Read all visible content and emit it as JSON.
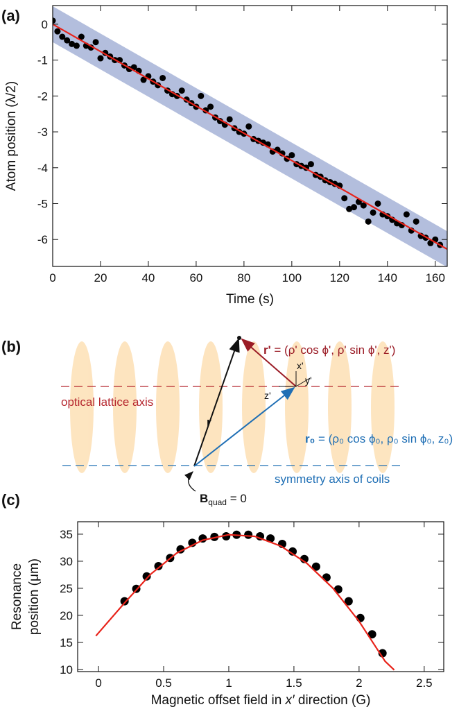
{
  "chart_data": [
    {
      "type": "scatter",
      "panel_label": "(a)",
      "xlabel": "Time (s)",
      "ylabel": "Atom position (λ/2)",
      "x": [
        0,
        2,
        4,
        6,
        8,
        10,
        12,
        14,
        16,
        18,
        20,
        22,
        24,
        26,
        28,
        30,
        32,
        34,
        36,
        38,
        40,
        42,
        44,
        46,
        48,
        50,
        52,
        54,
        56,
        58,
        60,
        62,
        64,
        66,
        68,
        70,
        72,
        74,
        76,
        78,
        80,
        82,
        84,
        86,
        88,
        90,
        92,
        94,
        96,
        98,
        100,
        102,
        104,
        106,
        108,
        110,
        112,
        114,
        116,
        118,
        120,
        122,
        124,
        126,
        128,
        130,
        132,
        134,
        136,
        138,
        140,
        142,
        144,
        146,
        148,
        150,
        152,
        154,
        156,
        158,
        160,
        162
      ],
      "values": [
        0.1,
        -0.2,
        -0.35,
        -0.45,
        -0.55,
        -0.6,
        -0.35,
        -0.6,
        -0.65,
        -0.5,
        -0.95,
        -0.8,
        -0.9,
        -1.0,
        -1.0,
        -1.15,
        -1.25,
        -1.2,
        -1.3,
        -1.55,
        -1.45,
        -1.6,
        -1.7,
        -1.5,
        -1.85,
        -1.95,
        -2.0,
        -1.85,
        -2.1,
        -2.2,
        -2.3,
        -2.0,
        -2.4,
        -2.3,
        -2.6,
        -2.7,
        -2.8,
        -2.65,
        -2.9,
        -3.0,
        -3.05,
        -2.85,
        -3.2,
        -3.25,
        -3.3,
        -3.35,
        -3.55,
        -3.5,
        -3.6,
        -3.75,
        -3.65,
        -3.9,
        -3.95,
        -4.0,
        -3.9,
        -4.2,
        -4.25,
        -4.35,
        -4.4,
        -4.45,
        -4.5,
        -4.85,
        -5.15,
        -5.1,
        -4.95,
        -5.05,
        -5.5,
        -5.25,
        -5.0,
        -5.3,
        -5.35,
        -5.45,
        -5.55,
        -5.6,
        -5.3,
        -5.75,
        -5.5,
        -5.9,
        -5.95,
        -6.1,
        -6.0,
        -6.15
      ],
      "color": "#000000",
      "fit": {
        "x": [
          0,
          165
        ],
        "values": [
          0.0,
          -6.27
        ],
        "color": "#e8231a"
      },
      "band": {
        "x": [
          0,
          165
        ],
        "upper": [
          0.5,
          -5.77
        ],
        "lower": [
          -0.5,
          -6.77
        ],
        "color": "#b3bedd"
      },
      "xlim": [
        0,
        165
      ],
      "ylim": [
        -6.75,
        0.52
      ],
      "xticks": [
        0,
        20,
        40,
        60,
        80,
        100,
        120,
        140,
        160
      ],
      "yticks": [
        0,
        -1,
        -2,
        -3,
        -4,
        -5,
        -6
      ]
    },
    {
      "type": "scatter",
      "panel_label": "(c)",
      "xlabel": [
        "Magnetic offset field in ",
        "x′",
        " direction (G)"
      ],
      "ylabel": [
        "Resonance",
        "position (μm)"
      ],
      "x": [
        0.2,
        0.29,
        0.37,
        0.46,
        0.55,
        0.63,
        0.72,
        0.8,
        0.89,
        0.98,
        1.06,
        1.15,
        1.24,
        1.32,
        1.41,
        1.49,
        1.58,
        1.67,
        1.75,
        1.84,
        1.92,
        2.01,
        2.1,
        2.18
      ],
      "values": [
        22.6,
        24.9,
        27.2,
        29.1,
        30.6,
        32.2,
        33.4,
        34.2,
        34.5,
        34.6,
        34.9,
        34.9,
        34.6,
        34.2,
        33.2,
        31.8,
        30.4,
        29.0,
        27.0,
        24.8,
        22.6,
        19.5,
        16.5,
        13.0
      ],
      "color": "#000000",
      "fit": {
        "x": [
          -0.02,
          0.2,
          0.4,
          0.6,
          0.8,
          1.0,
          1.2,
          1.4,
          1.6,
          1.8,
          2.0,
          2.1,
          2.2,
          2.27
        ],
        "values": [
          16.2,
          22.3,
          27.6,
          31.5,
          33.9,
          34.9,
          34.6,
          32.8,
          29.6,
          25.0,
          18.9,
          15.2,
          11.5,
          9.9
        ],
        "color": "#e8231a"
      },
      "xlim": [
        -0.16,
        2.65
      ],
      "ylim": [
        9.6,
        37.3
      ],
      "xticks": [
        0,
        0.5,
        1,
        1.5,
        2,
        2.5
      ],
      "yticks": [
        10,
        15,
        20,
        25,
        30,
        35
      ]
    }
  ],
  "diagram": {
    "panel_label": "(b)",
    "lattice_axis": "optical lattice axis",
    "coil_axis": "symmetry axis of coils",
    "r": "r",
    "r_prime": {
      "symbol": "r'",
      "rest": " = (ρ' cos ϕ', ρ' sin ϕ', z')"
    },
    "r0": {
      "symbol": "r₀",
      "rest": " = (ρ₀ cos ϕ₀, ρ₀ sin ϕ₀, z₀)"
    },
    "b_quad": {
      "symbol": "B",
      "subscript": "quad",
      "rest": " = 0"
    },
    "axes": {
      "x": "x'",
      "y": "y'",
      "z": "z'"
    }
  }
}
